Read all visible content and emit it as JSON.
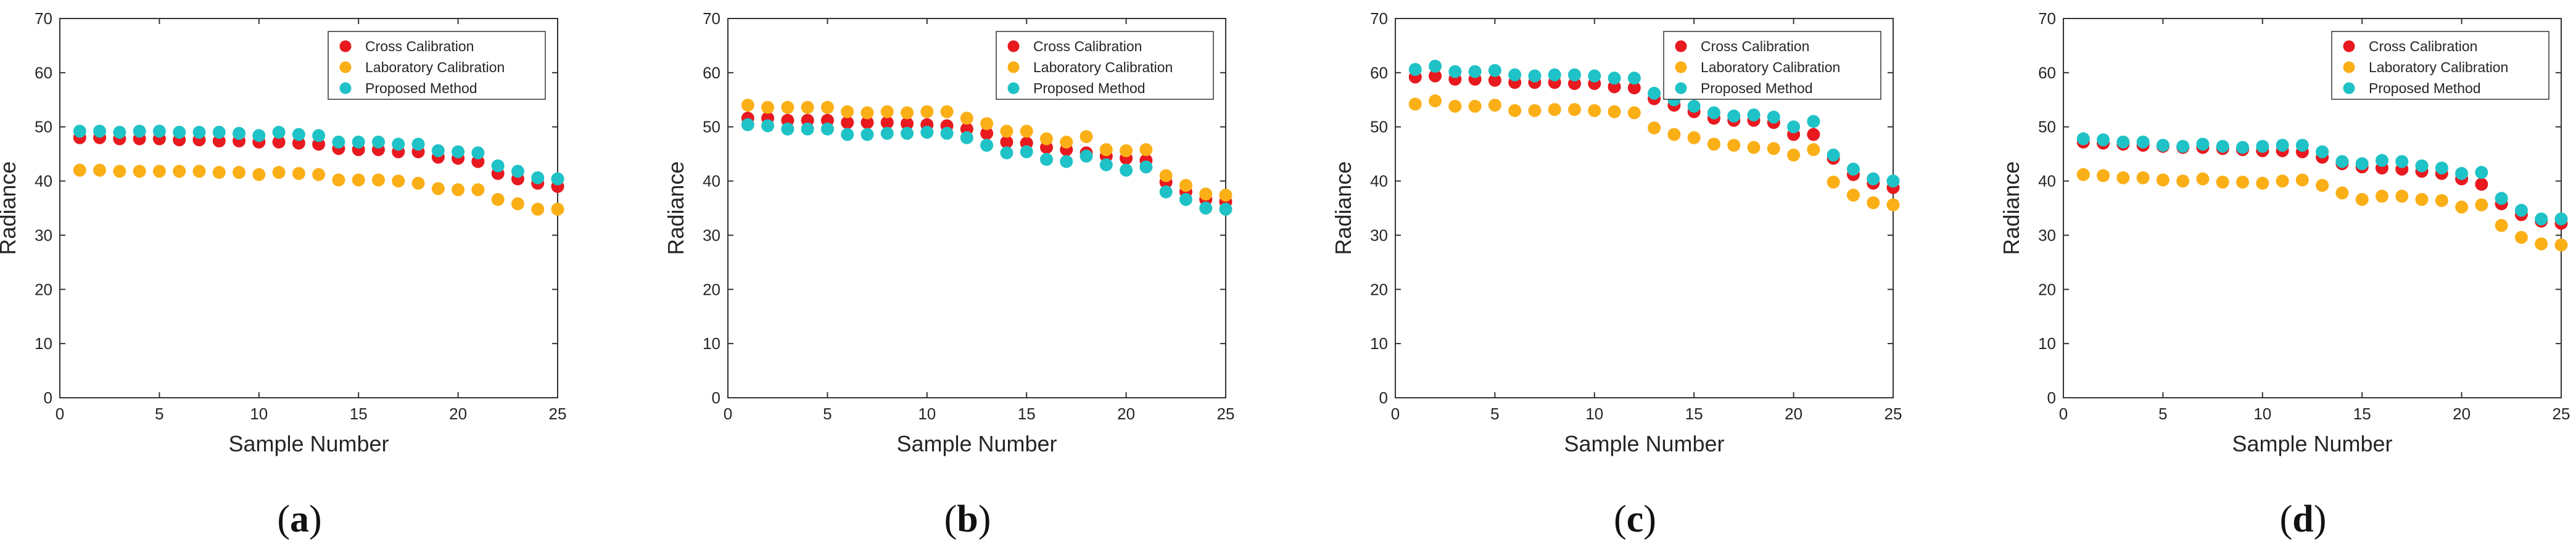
{
  "colors": {
    "cross": "#e8191f",
    "lab": "#fbaf17",
    "proposed": "#1fc2c6",
    "axis": "#333333",
    "text": "#262626",
    "background": "#ffffff"
  },
  "chart_data": [
    {
      "type": "scatter",
      "panel_label": "a",
      "title": "",
      "xlabel": "Sample Number",
      "ylabel": "Radiance",
      "xlim": [
        0,
        25
      ],
      "ylim": [
        0,
        70
      ],
      "xticks": [
        0,
        5,
        10,
        15,
        20,
        25
      ],
      "yticks": [
        0,
        10,
        20,
        30,
        40,
        50,
        60,
        70
      ],
      "legend_position": "top-right",
      "grid": false,
      "x": [
        1,
        2,
        3,
        4,
        5,
        6,
        7,
        8,
        9,
        10,
        11,
        12,
        13,
        14,
        15,
        16,
        17,
        18,
        19,
        20,
        21,
        22,
        23,
        24,
        25
      ],
      "series": [
        {
          "name": "Cross Calibration",
          "color_key": "cross",
          "values": [
            48.0,
            48.0,
            47.8,
            47.8,
            47.8,
            47.6,
            47.6,
            47.4,
            47.4,
            47.2,
            47.2,
            47.0,
            46.8,
            46.0,
            45.8,
            45.8,
            45.4,
            45.4,
            44.4,
            44.2,
            43.6,
            41.4,
            40.4,
            39.6,
            39.0
          ]
        },
        {
          "name": "Laboratory Calibration",
          "color_key": "lab",
          "values": [
            42.0,
            42.0,
            41.8,
            41.8,
            41.8,
            41.8,
            41.8,
            41.6,
            41.6,
            41.2,
            41.6,
            41.4,
            41.2,
            40.2,
            40.2,
            40.2,
            40.0,
            39.6,
            38.6,
            38.4,
            38.4,
            36.6,
            35.8,
            34.8,
            34.8
          ]
        },
        {
          "name": "Proposed Method",
          "color_key": "proposed",
          "values": [
            49.2,
            49.2,
            49.0,
            49.2,
            49.2,
            49.0,
            49.0,
            49.0,
            48.8,
            48.4,
            49.0,
            48.6,
            48.4,
            47.2,
            47.2,
            47.2,
            46.8,
            46.8,
            45.6,
            45.4,
            45.2,
            42.8,
            41.8,
            40.6,
            40.4
          ]
        }
      ]
    },
    {
      "type": "scatter",
      "panel_label": "b",
      "title": "",
      "xlabel": "Sample Number",
      "ylabel": "Radiance",
      "xlim": [
        0,
        25
      ],
      "ylim": [
        0,
        70
      ],
      "xticks": [
        0,
        5,
        10,
        15,
        20,
        25
      ],
      "yticks": [
        0,
        10,
        20,
        30,
        40,
        50,
        60,
        70
      ],
      "legend_position": "top-right",
      "grid": false,
      "x": [
        1,
        2,
        3,
        4,
        5,
        6,
        7,
        8,
        9,
        10,
        11,
        12,
        13,
        14,
        15,
        16,
        17,
        18,
        19,
        20,
        21,
        22,
        23,
        24,
        25
      ],
      "series": [
        {
          "name": "Cross Calibration",
          "color_key": "cross",
          "values": [
            51.6,
            51.6,
            51.2,
            51.2,
            51.2,
            50.8,
            50.8,
            50.8,
            50.6,
            50.4,
            50.2,
            49.6,
            48.8,
            47.2,
            47.0,
            46.2,
            45.8,
            45.2,
            44.6,
            44.2,
            43.8,
            39.8,
            38.0,
            36.6,
            36.2
          ]
        },
        {
          "name": "Laboratory Calibration",
          "color_key": "lab",
          "values": [
            54.0,
            53.6,
            53.6,
            53.6,
            53.6,
            52.8,
            52.6,
            52.8,
            52.6,
            52.8,
            52.8,
            51.6,
            50.6,
            49.2,
            49.2,
            47.8,
            47.2,
            48.2,
            45.8,
            45.6,
            45.8,
            41.0,
            39.2,
            37.6,
            37.4
          ]
        },
        {
          "name": "Proposed Method",
          "color_key": "proposed",
          "values": [
            50.4,
            50.2,
            49.6,
            49.6,
            49.6,
            48.6,
            48.6,
            48.8,
            48.8,
            49.0,
            48.8,
            48.0,
            46.6,
            45.2,
            45.4,
            44.0,
            43.6,
            44.6,
            43.0,
            42.0,
            42.6,
            38.0,
            36.6,
            35.0,
            34.8
          ]
        }
      ]
    },
    {
      "type": "scatter",
      "panel_label": "c",
      "title": "",
      "xlabel": "Sample Number",
      "ylabel": "Radiance",
      "xlim": [
        0,
        25
      ],
      "ylim": [
        0,
        70
      ],
      "xticks": [
        0,
        5,
        10,
        15,
        20,
        25
      ],
      "yticks": [
        0,
        10,
        20,
        30,
        40,
        50,
        60,
        70
      ],
      "legend_position": "top-right",
      "grid": false,
      "x": [
        1,
        2,
        3,
        4,
        5,
        6,
        7,
        8,
        9,
        10,
        11,
        12,
        13,
        14,
        15,
        16,
        17,
        18,
        19,
        20,
        21,
        22,
        23,
        24,
        25
      ],
      "series": [
        {
          "name": "Cross Calibration",
          "color_key": "cross",
          "values": [
            59.2,
            59.4,
            58.8,
            58.8,
            58.6,
            58.2,
            58.2,
            58.2,
            58.0,
            58.0,
            57.4,
            57.2,
            55.2,
            54.0,
            52.8,
            51.6,
            51.2,
            51.2,
            50.8,
            48.6,
            48.6,
            44.2,
            41.2,
            39.6,
            38.8
          ]
        },
        {
          "name": "Laboratory Calibration",
          "color_key": "lab",
          "values": [
            54.2,
            54.8,
            53.8,
            53.8,
            54.0,
            53.0,
            53.0,
            53.2,
            53.2,
            53.0,
            52.8,
            52.6,
            49.8,
            48.6,
            48.0,
            46.8,
            46.6,
            46.2,
            46.0,
            44.8,
            45.8,
            39.8,
            37.4,
            36.0,
            35.6
          ]
        },
        {
          "name": "Proposed Method",
          "color_key": "proposed",
          "values": [
            60.6,
            61.2,
            60.2,
            60.2,
            60.4,
            59.6,
            59.4,
            59.6,
            59.6,
            59.4,
            59.0,
            59.0,
            56.2,
            55.0,
            53.8,
            52.6,
            52.0,
            52.2,
            51.8,
            50.0,
            51.0,
            44.8,
            42.2,
            40.4,
            40.0
          ]
        }
      ]
    },
    {
      "type": "scatter",
      "panel_label": "d",
      "title": "",
      "xlabel": "Sample Number",
      "ylabel": "Radiance",
      "xlim": [
        0,
        25
      ],
      "ylim": [
        0,
        70
      ],
      "xticks": [
        0,
        5,
        10,
        15,
        20,
        25
      ],
      "yticks": [
        0,
        10,
        20,
        30,
        40,
        50,
        60,
        70
      ],
      "legend_position": "top-right",
      "grid": false,
      "x": [
        1,
        2,
        3,
        4,
        5,
        6,
        7,
        8,
        9,
        10,
        11,
        12,
        13,
        14,
        15,
        16,
        17,
        18,
        19,
        20,
        21,
        22,
        23,
        24,
        25
      ],
      "series": [
        {
          "name": "Cross Calibration",
          "color_key": "cross",
          "values": [
            47.2,
            47.0,
            46.8,
            46.6,
            46.4,
            46.2,
            46.2,
            46.0,
            45.8,
            45.6,
            45.6,
            45.4,
            44.4,
            43.2,
            42.6,
            42.4,
            42.2,
            41.8,
            41.4,
            40.4,
            39.4,
            35.8,
            33.8,
            32.6,
            32.2
          ]
        },
        {
          "name": "Laboratory Calibration",
          "color_key": "lab",
          "values": [
            41.2,
            41.0,
            40.6,
            40.6,
            40.2,
            40.0,
            40.4,
            39.8,
            39.8,
            39.6,
            40.0,
            40.2,
            39.2,
            37.8,
            36.6,
            37.2,
            37.2,
            36.6,
            36.4,
            35.2,
            35.6,
            31.8,
            29.6,
            28.4,
            28.2
          ]
        },
        {
          "name": "Proposed Method",
          "color_key": "proposed",
          "values": [
            47.8,
            47.6,
            47.2,
            47.2,
            46.6,
            46.4,
            46.8,
            46.4,
            46.2,
            46.4,
            46.6,
            46.6,
            45.4,
            43.6,
            43.2,
            43.8,
            43.6,
            42.8,
            42.4,
            41.4,
            41.6,
            36.8,
            34.6,
            33.0,
            33.0
          ]
        }
      ]
    }
  ]
}
